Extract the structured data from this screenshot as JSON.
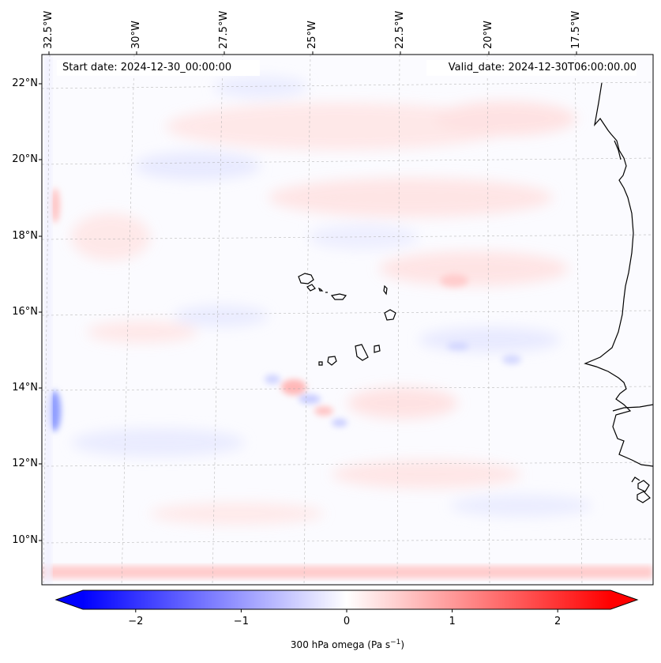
{
  "header": {
    "start_date": "Start date: 2024-12-30_00:00:00",
    "valid_date": "Valid_date: 2024-12-30T06:00:00.00"
  },
  "map": {
    "lon_labels": [
      "32.5°W",
      "30°W",
      "27.5°W",
      "25°W",
      "22.5°W",
      "20°W",
      "17.5°W"
    ],
    "lat_labels": [
      "22°N",
      "20°N",
      "18°N",
      "16°N",
      "14°N",
      "12°N",
      "10°N"
    ],
    "colors": {
      "negative": "#0000ff",
      "zero": "#ffffff",
      "positive": "#ff0000",
      "coastline": "#000000"
    }
  },
  "colorbar": {
    "min": -2.5,
    "max": 2.5,
    "ticks": [
      "−2",
      "−1",
      "0",
      "1",
      "2"
    ],
    "tick_values": [
      -2,
      -1,
      0,
      1,
      2
    ],
    "label_main": "300 hPa omega (Pa s",
    "label_sup": "−1",
    "label_end": ")"
  }
}
